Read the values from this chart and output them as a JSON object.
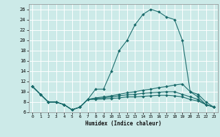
{
  "title": "",
  "xlabel": "Humidex (Indice chaleur)",
  "bg_color": "#cceae8",
  "grid_color": "#ffffff",
  "line_color": "#1a6b6b",
  "xlim": [
    -0.5,
    23.5
  ],
  "ylim": [
    6,
    27
  ],
  "yticks": [
    6,
    8,
    10,
    12,
    14,
    16,
    18,
    20,
    22,
    24,
    26
  ],
  "xticks": [
    0,
    1,
    2,
    3,
    4,
    5,
    6,
    7,
    8,
    9,
    10,
    11,
    12,
    13,
    14,
    15,
    16,
    17,
    18,
    19,
    20,
    21,
    22,
    23
  ],
  "lines": [
    {
      "x": [
        0,
        1,
        2,
        3,
        4,
        5,
        6,
        7,
        8,
        9,
        10,
        11,
        12,
        13,
        14,
        15,
        16,
        17,
        18,
        19,
        20,
        21,
        22,
        23
      ],
      "y": [
        11,
        9.5,
        8,
        8,
        7.5,
        6.5,
        7,
        8.5,
        10.5,
        10.5,
        14,
        18,
        20,
        23,
        25,
        26,
        25.5,
        24.5,
        24,
        20,
        10,
        9.5,
        8,
        7
      ]
    },
    {
      "x": [
        0,
        1,
        2,
        3,
        4,
        5,
        6,
        7,
        8,
        9,
        10,
        11,
        12,
        13,
        14,
        15,
        16,
        17,
        18,
        19,
        20,
        21,
        22,
        23
      ],
      "y": [
        11,
        9.5,
        8,
        8,
        7.5,
        6.5,
        7,
        8.5,
        8.8,
        9,
        9.2,
        9.5,
        9.8,
        10,
        10.3,
        10.5,
        10.8,
        11,
        11.3,
        11.5,
        10,
        9,
        7.5,
        7
      ]
    },
    {
      "x": [
        0,
        1,
        2,
        3,
        4,
        5,
        6,
        7,
        8,
        9,
        10,
        11,
        12,
        13,
        14,
        15,
        16,
        17,
        18,
        19,
        20,
        21,
        22,
        23
      ],
      "y": [
        11,
        9.5,
        8,
        8,
        7.5,
        6.5,
        7,
        8.5,
        8.7,
        8.8,
        9,
        9.2,
        9.4,
        9.5,
        9.7,
        9.8,
        9.9,
        10,
        10,
        9.5,
        9,
        8.5,
        7.5,
        7
      ]
    },
    {
      "x": [
        0,
        1,
        2,
        3,
        4,
        5,
        6,
        7,
        8,
        9,
        10,
        11,
        12,
        13,
        14,
        15,
        16,
        17,
        18,
        19,
        20,
        21,
        22,
        23
      ],
      "y": [
        11,
        9.5,
        8,
        8,
        7.5,
        6.5,
        7,
        8.5,
        8.5,
        8.6,
        8.7,
        8.8,
        9,
        9,
        9.1,
        9.2,
        9.3,
        9.3,
        9.2,
        9,
        8.5,
        8.2,
        7.5,
        7
      ]
    }
  ]
}
